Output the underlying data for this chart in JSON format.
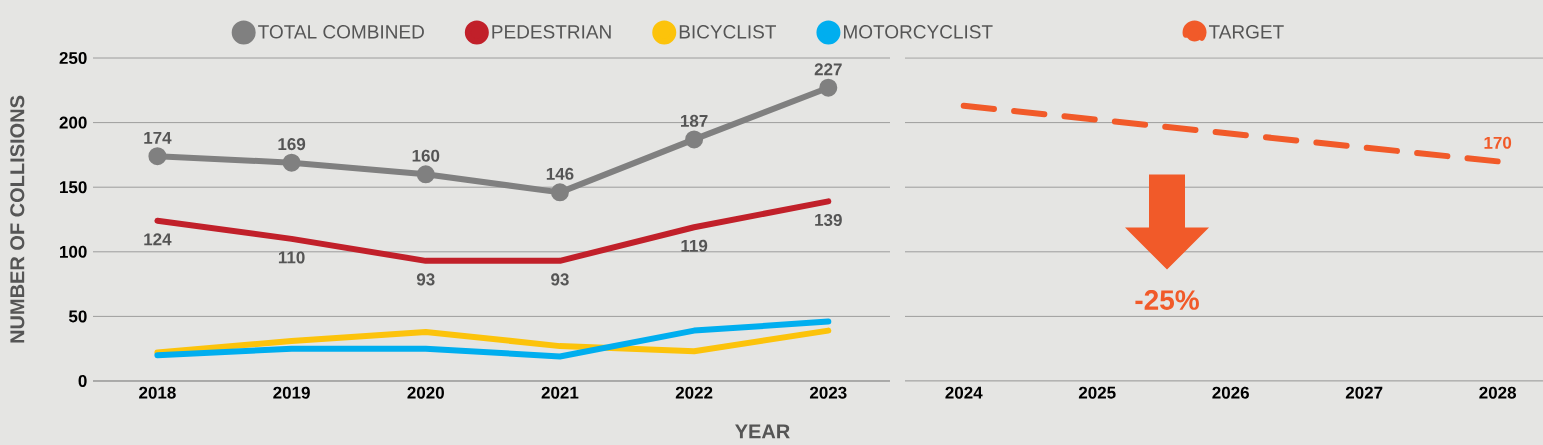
{
  "chart_data": [
    {
      "type": "line",
      "categories": [
        "2018",
        "2019",
        "2020",
        "2021",
        "2022",
        "2023"
      ],
      "xlabel": "YEAR",
      "ylabel": "NUMBER OF COLLISIONS",
      "ylim": [
        0,
        250
      ],
      "yticks": [
        0,
        50,
        100,
        150,
        200,
        250
      ],
      "grid": "y",
      "legend": "top",
      "series": [
        {
          "name": "TOTAL COMBINED",
          "color": "#808080",
          "marker": "circle",
          "values": [
            174,
            169,
            160,
            146,
            187,
            227
          ],
          "value_labels": [
            "174",
            "169",
            "160",
            "146",
            "187",
            "227"
          ]
        },
        {
          "name": "PEDESTRIAN",
          "color": "#c1202a",
          "values": [
            124,
            110,
            93,
            93,
            119,
            139
          ],
          "value_labels": [
            "124",
            "110",
            "93",
            "93",
            "119",
            "139"
          ]
        },
        {
          "name": "BICYCLIST",
          "color": "#fcc30b",
          "values": [
            22,
            31,
            38,
            27,
            23,
            39
          ]
        },
        {
          "name": "MOTORCYCLIST",
          "color": "#00aeef",
          "values": [
            20,
            25,
            25,
            19,
            39,
            46
          ]
        }
      ]
    },
    {
      "type": "line",
      "xlim": [
        2023.56,
        2028.34
      ],
      "xticks": [
        2024,
        2025,
        2026,
        2027,
        2028
      ],
      "ylim": [
        0,
        250
      ],
      "yticks": [
        0,
        50,
        100,
        150,
        200,
        250
      ],
      "tick_labels": "x",
      "grid": "y",
      "legend": "top",
      "annotations": [
        "-25%"
      ],
      "series": [
        {
          "name": "TARGET",
          "color": "#f15a29",
          "line_style": "dashed",
          "x": [
            2024,
            2028
          ],
          "values": [
            213,
            170
          ],
          "value_labels": [
            null,
            "170"
          ]
        }
      ]
    }
  ]
}
